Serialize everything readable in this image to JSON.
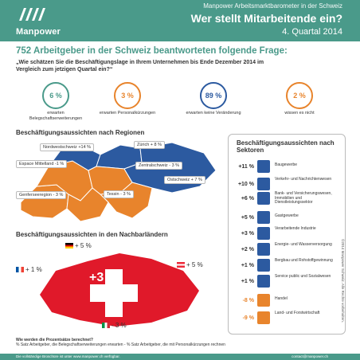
{
  "header": {
    "brand": "Manpower",
    "kicker": "Manpower Arbeitsmarktbarometer in der Schweiz",
    "title": "Wer stellt Mitarbeitende ein?",
    "period": "4. Quartal 2014"
  },
  "headline": "752 Arbeitgeber in der Schweiz beantworteten folgende Frage:",
  "question": "„Wie schätzen Sie die Beschäftigungslage in Ihrem Unternehmen bis Ende Dezember 2014 im Vergleich zum jetzigen Quartal ein?“",
  "stats": [
    {
      "value": "6 %",
      "label": "erwarten Belegschaftserweiterungen",
      "color": "#4a9a8a"
    },
    {
      "value": "3 %",
      "label": "erwarten Personalkürzungen",
      "color": "#e8842c"
    },
    {
      "value": "89 %",
      "label": "erwarten keine Veränderung",
      "color": "#2c5aa0"
    },
    {
      "value": "2 %",
      "label": "wissen es nicht",
      "color": "#e8842c"
    }
  ],
  "regions": {
    "title": "Beschäftigungsaussichten nach Regionen",
    "items": [
      {
        "label": "Nordwestschweiz +14 %"
      },
      {
        "label": "Zürich + 8 %"
      },
      {
        "label": "Espace Mittelland -1 %"
      },
      {
        "label": "Zentralschweiz - 3 %"
      },
      {
        "label": "Ostschweiz + 7 %"
      },
      {
        "label": "Genferseeregion - 3 %"
      },
      {
        "label": "Tessin - 3 %"
      }
    ]
  },
  "neighbors": {
    "title": "Beschäftigungsaussichten in den Nachbarländern",
    "center": "+3 %",
    "germany": "+ 5 %",
    "france": "+ 1 %",
    "austria": "+ 5 %",
    "italy": "- 3 %"
  },
  "sectors": {
    "title": "Beschäftigungsaussichten nach Sektoren",
    "items": [
      {
        "value": "+11 %",
        "label": "Baugewerbe",
        "icon": "crane-icon",
        "neg": false
      },
      {
        "value": "+10 %",
        "label": "Verkehr- und Nachrichtenwesen",
        "icon": "truck-icon",
        "neg": false
      },
      {
        "value": "+6 %",
        "label": "Bank- und Versicherungswesen, Immobilien und Dienstleistungssektor",
        "icon": "bank-icon",
        "neg": false
      },
      {
        "value": "+5 %",
        "label": "Gastgewerbe",
        "icon": "cutlery-icon",
        "neg": false
      },
      {
        "value": "+3 %",
        "label": "Verarbeitende Industrie",
        "icon": "factory-icon",
        "neg": false
      },
      {
        "value": "+2 %",
        "label": "Energie- und Wasserversorgung",
        "icon": "lightbulb-icon",
        "neg": false
      },
      {
        "value": "+1 %",
        "label": "Bergbau und Rohstoffgewinnung",
        "icon": "helmet-icon",
        "neg": false
      },
      {
        "value": "+1 %",
        "label": "Service public und Sozialwesen",
        "icon": "people-icon",
        "neg": false
      },
      {
        "value": "-8 %",
        "label": "Handel",
        "icon": "cart-icon",
        "neg": true
      },
      {
        "value": "-9 %",
        "label": "Land- und Forstwirtschaft",
        "icon": "tractor-icon",
        "neg": true
      }
    ]
  },
  "footer": {
    "q": "Wie werden die Prozentsätze berechnet?",
    "a": "% Satz Arbeitgeber, die Belegschaftserweiterungen erwarten  -  % Satz Arbeitgeber, die mit Personalkürzungen rechnen",
    "link": "Die vollständige Broschüre ist unter www.manpower.ch verfügbar.",
    "contact": "contact@manpower.ch",
    "copyright": "©2014 Manpower Schweiz. Alle Rechte vorbehalten."
  }
}
